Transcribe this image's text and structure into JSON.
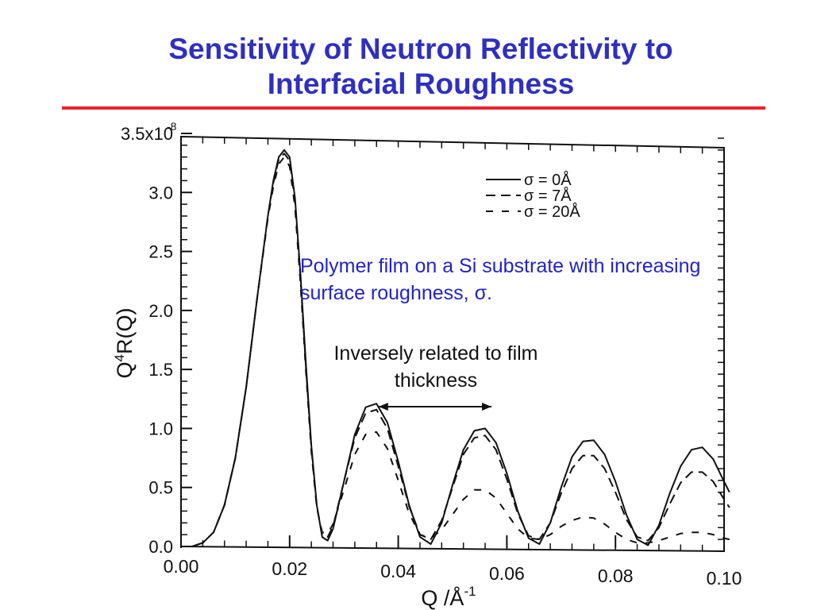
{
  "slide": {
    "title_line1": "Sensitivity of Neutron Reflectivity to",
    "title_line2": "Interfacial Roughness",
    "accent_color": "#e8242a",
    "title_color": "#2f2fc0"
  },
  "annotations": {
    "blue_note": "Polymer film on a Si substrate with increasing surface roughness, σ.",
    "black_note": "Inversely related to film thickness",
    "blue_color": "#2323c8"
  },
  "chart_data": {
    "type": "line",
    "title": "",
    "xlabel": "Q  /Å",
    "xlabel_superscript": "-1",
    "ylabel": "Q",
    "ylabel_superscript": "4",
    "ylabel_rest": "R(Q)",
    "xlim": [
      0.0,
      0.1
    ],
    "ylim": [
      0.0,
      3.5e-08
    ],
    "x_ticks": [
      "0.00",
      "0.02",
      "0.04",
      "0.06",
      "0.08",
      "0.10"
    ],
    "x_tick_values": [
      0.0,
      0.02,
      0.04,
      0.06,
      0.08,
      0.1
    ],
    "y_ticks": [
      "0.0",
      "0.5",
      "1.0",
      "1.5",
      "2.0",
      "2.5",
      "3.0",
      "3.5x10"
    ],
    "y_tick_values": [
      0.0,
      5e-09,
      1e-08,
      1.5e-08,
      2e-08,
      2.5e-08,
      3e-08,
      3.5e-08
    ],
    "y_top_exponent": "-8",
    "legend_position": "top-right",
    "grid": false,
    "series": [
      {
        "name": "σ  =  0Å",
        "style": "solid",
        "x": [
          0.0,
          0.002,
          0.004,
          0.006,
          0.008,
          0.01,
          0.012,
          0.014,
          0.016,
          0.017,
          0.018,
          0.019,
          0.02,
          0.021,
          0.022,
          0.023,
          0.024,
          0.025,
          0.026,
          0.027,
          0.028,
          0.03,
          0.032,
          0.034,
          0.036,
          0.038,
          0.04,
          0.042,
          0.044,
          0.046,
          0.048,
          0.05,
          0.052,
          0.054,
          0.056,
          0.058,
          0.06,
          0.062,
          0.064,
          0.066,
          0.068,
          0.07,
          0.072,
          0.074,
          0.076,
          0.078,
          0.08,
          0.082,
          0.084,
          0.086,
          0.088,
          0.09,
          0.092,
          0.094,
          0.096,
          0.098,
          0.1,
          0.101
        ],
        "y": [
          0.0,
          0.0,
          3e-10,
          1.2e-09,
          3.5e-09,
          7.5e-09,
          1.35e-08,
          2.1e-08,
          2.8e-08,
          3.1e-08,
          3.3e-08,
          3.36e-08,
          3.3e-08,
          2.95e-08,
          2.3e-08,
          1.55e-08,
          8.5e-09,
          3.5e-09,
          8e-10,
          5e-10,
          1.5e-09,
          5.5e-09,
          9.5e-09,
          1.18e-08,
          1.21e-08,
          1.05e-08,
          7.2e-09,
          3.5e-09,
          8e-10,
          2e-10,
          2e-09,
          5.2e-09,
          8.2e-09,
          9.8e-09,
          1e-08,
          8.8e-09,
          6.2e-09,
          3e-09,
          7e-10,
          2e-10,
          2e-09,
          5e-09,
          7.6e-09,
          8.9e-09,
          9e-09,
          7.8e-09,
          5.5e-09,
          2.7e-09,
          6e-10,
          1e-10,
          1.8e-09,
          4.5e-09,
          6.8e-09,
          8.2e-09,
          8.4e-09,
          7.4e-09,
          5.5e-09,
          4.6e-09
        ]
      },
      {
        "name": "σ  =  7Å",
        "style": "dashed",
        "x": [
          0.0,
          0.002,
          0.004,
          0.006,
          0.008,
          0.01,
          0.012,
          0.014,
          0.016,
          0.017,
          0.018,
          0.019,
          0.02,
          0.021,
          0.022,
          0.023,
          0.024,
          0.025,
          0.026,
          0.027,
          0.028,
          0.03,
          0.032,
          0.034,
          0.036,
          0.038,
          0.04,
          0.042,
          0.044,
          0.046,
          0.048,
          0.05,
          0.052,
          0.054,
          0.056,
          0.058,
          0.06,
          0.062,
          0.064,
          0.066,
          0.068,
          0.07,
          0.072,
          0.074,
          0.076,
          0.078,
          0.08,
          0.082,
          0.084,
          0.086,
          0.088,
          0.09,
          0.092,
          0.094,
          0.096,
          0.098,
          0.1,
          0.101
        ],
        "y": [
          0.0,
          0.0,
          3e-10,
          1.2e-09,
          3.5e-09,
          7.5e-09,
          1.35e-08,
          2.1e-08,
          2.8e-08,
          3.08e-08,
          3.28e-08,
          3.33e-08,
          3.27e-08,
          2.92e-08,
          2.27e-08,
          1.52e-08,
          8.3e-09,
          3.4e-09,
          1e-09,
          8e-10,
          1.7e-09,
          5.5e-09,
          9.2e-09,
          1.13e-08,
          1.16e-08,
          1e-08,
          6.8e-09,
          3.4e-09,
          1e-09,
          6e-10,
          2.2e-09,
          5e-09,
          7.8e-09,
          9.2e-09,
          9.4e-09,
          8.2e-09,
          5.7e-09,
          2.8e-09,
          9e-10,
          6e-10,
          2e-09,
          4.5e-09,
          6.6e-09,
          7.7e-09,
          7.7e-09,
          6.6e-09,
          4.6e-09,
          2.3e-09,
          8e-10,
          5e-10,
          1.6e-09,
          3.6e-09,
          5.4e-09,
          6.3e-09,
          6.3e-09,
          5.5e-09,
          4e-09,
          3.3e-09
        ]
      },
      {
        "name": "σ  =  20Å",
        "style": "dashed",
        "x": [
          0.0,
          0.002,
          0.004,
          0.006,
          0.008,
          0.01,
          0.012,
          0.014,
          0.016,
          0.017,
          0.018,
          0.019,
          0.02,
          0.021,
          0.022,
          0.023,
          0.024,
          0.025,
          0.026,
          0.027,
          0.028,
          0.03,
          0.032,
          0.034,
          0.036,
          0.038,
          0.04,
          0.042,
          0.044,
          0.046,
          0.048,
          0.05,
          0.052,
          0.054,
          0.056,
          0.058,
          0.06,
          0.062,
          0.064,
          0.066,
          0.068,
          0.07,
          0.072,
          0.074,
          0.076,
          0.078,
          0.08,
          0.082,
          0.084,
          0.086,
          0.088,
          0.09,
          0.092,
          0.094,
          0.096,
          0.098,
          0.1,
          0.101
        ],
        "y": [
          0.0,
          0.0,
          3e-10,
          1.2e-09,
          3.5e-09,
          7.5e-09,
          1.35e-08,
          2.1e-08,
          2.78e-08,
          3.05e-08,
          3.24e-08,
          3.3e-08,
          3.22e-08,
          2.87e-08,
          2.22e-08,
          1.48e-08,
          8e-09,
          3.3e-09,
          1.2e-09,
          1.1e-09,
          1.9e-09,
          4.8e-09,
          7.8e-09,
          9.5e-09,
          9.7e-09,
          8.3e-09,
          5.6e-09,
          2.8e-09,
          1e-09,
          7e-10,
          1.4e-09,
          2.7e-09,
          4e-09,
          4.8e-09,
          4.8e-09,
          4.1e-09,
          2.8e-09,
          1.5e-09,
          7e-10,
          6e-10,
          1e-09,
          1.7e-09,
          2.2e-09,
          2.5e-09,
          2.4e-09,
          1.9e-09,
          1.2e-09,
          6e-10,
          3e-10,
          3e-10,
          5e-10,
          8e-10,
          1.1e-09,
          1.2e-09,
          1.2e-09,
          1e-09,
          7e-10,
          6e-10
        ]
      }
    ]
  }
}
